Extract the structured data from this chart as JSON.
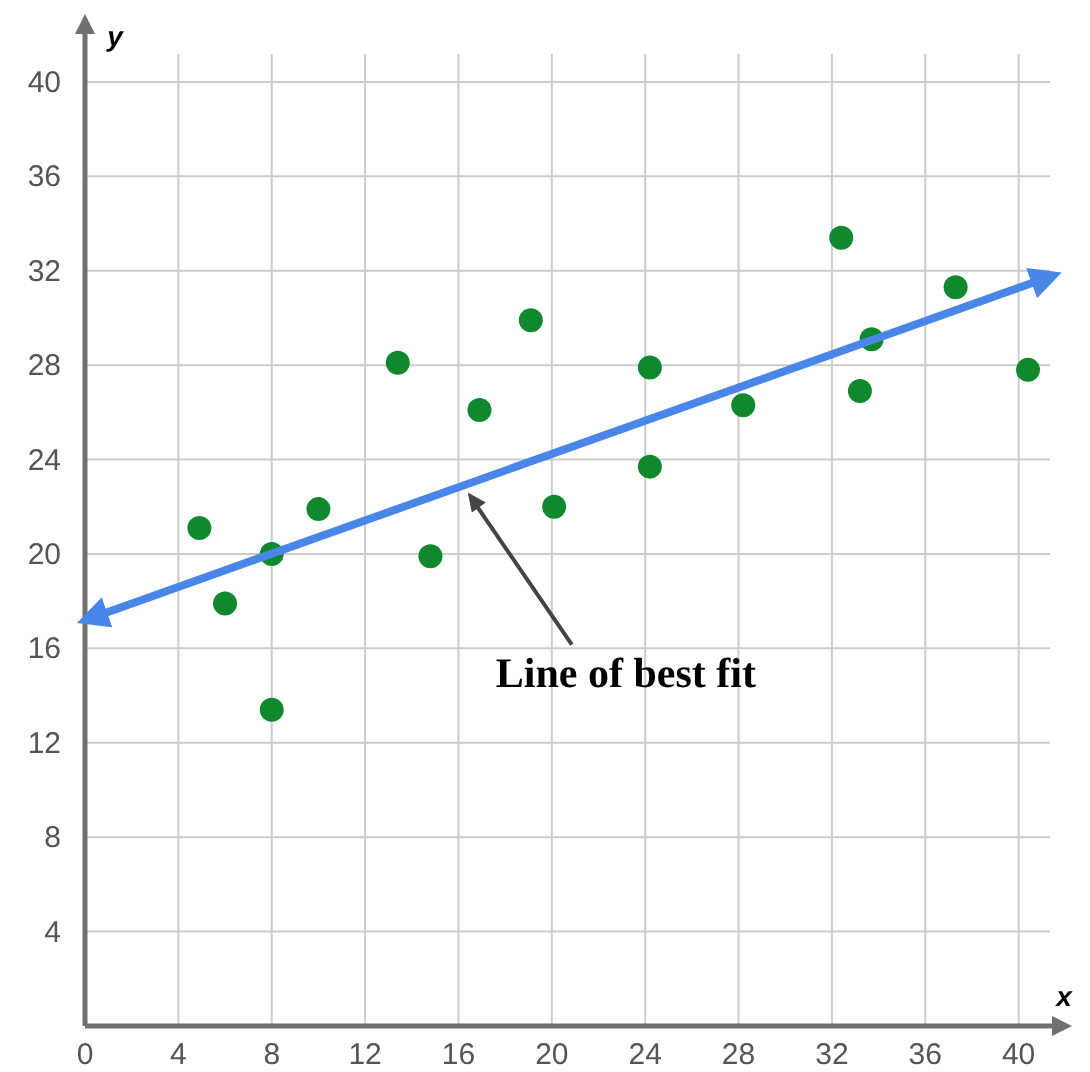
{
  "chart_data": {
    "type": "scatter",
    "xlabel": "x",
    "ylabel": "y",
    "xlim": [
      0,
      41.6
    ],
    "ylim": [
      0,
      42.2
    ],
    "xticks": [
      0,
      4,
      8,
      12,
      16,
      20,
      24,
      28,
      32,
      36,
      40
    ],
    "yticks": [
      4,
      8,
      12,
      16,
      20,
      24,
      28,
      32,
      36,
      40
    ],
    "grid": true,
    "series": [
      {
        "marker": "circle",
        "color": "#10892e",
        "x": [
          4.9,
          6.0,
          8.0,
          10.0,
          8.0,
          14.8,
          13.4,
          16.9,
          19.1,
          20.1,
          24.2,
          24.2,
          28.2,
          32.4,
          33.2,
          33.7,
          37.3,
          40.4
        ],
        "values": [
          21.1,
          17.9,
          20.0,
          21.9,
          13.4,
          19.9,
          28.1,
          26.1,
          29.9,
          22.0,
          27.9,
          23.7,
          26.3,
          33.4,
          26.9,
          29.1,
          31.3,
          27.8
        ]
      },
      {
        "type": "line",
        "color": "#4a86e8",
        "x": [
          0.3,
          41.2
        ],
        "values": [
          17.3,
          31.7
        ]
      }
    ],
    "annotations": [
      {
        "text": "Line of best fit",
        "x": 16.4,
        "y": 22.6
      }
    ]
  }
}
